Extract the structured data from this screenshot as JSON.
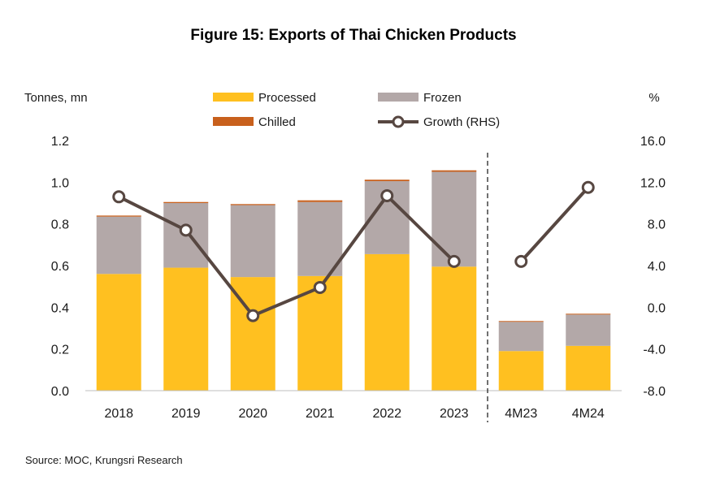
{
  "chart_data": {
    "type": "bar",
    "title": "Figure 15: Exports of Thai Chicken Products",
    "left_unit": "Tonnes, mn",
    "right_unit": "%",
    "source": "Source: MOC, Krungsri Research",
    "categories": [
      "2018",
      "2019",
      "2020",
      "2021",
      "2022",
      "2023",
      "4M23",
      "4M24"
    ],
    "series": [
      {
        "name": "Processed",
        "kind": "stacked-bar",
        "color": "#FFC020",
        "values": [
          0.56,
          0.59,
          0.545,
          0.55,
          0.655,
          0.595,
          0.19,
          0.215
        ]
      },
      {
        "name": "Frozen",
        "kind": "stacked-bar",
        "color": "#B3A8A8",
        "values": [
          0.275,
          0.31,
          0.345,
          0.355,
          0.35,
          0.455,
          0.14,
          0.15
        ]
      },
      {
        "name": "Chilled",
        "kind": "stacked-bar",
        "color": "#C8601C",
        "values": [
          0.005,
          0.005,
          0.005,
          0.008,
          0.007,
          0.007,
          0.004,
          0.004
        ]
      },
      {
        "name": "Growth (RHS)",
        "kind": "line",
        "axis": "right",
        "color": "#574741",
        "values": [
          10.6,
          7.4,
          -0.8,
          1.9,
          10.7,
          4.4,
          4.4,
          11.5
        ]
      }
    ],
    "y_left": {
      "min": 0,
      "max": 1.2,
      "ticks": [
        "0.0",
        "0.2",
        "0.4",
        "0.6",
        "0.8",
        "1.0",
        "1.2"
      ]
    },
    "y_right": {
      "min": -8,
      "max": 16,
      "ticks": [
        "-8.0",
        "-4.0",
        "0.0",
        "4.0",
        "8.0",
        "12.0",
        "16.0"
      ]
    },
    "divider_after": "2023",
    "legend": [
      {
        "label": "Processed",
        "kind": "box",
        "color": "#FFC020"
      },
      {
        "label": "Frozen",
        "kind": "box",
        "color": "#B3A8A8"
      },
      {
        "label": "Chilled",
        "kind": "box",
        "color": "#C8601C"
      },
      {
        "label": "Growth (RHS)",
        "kind": "line",
        "color": "#574741"
      }
    ],
    "legend_position": "top",
    "grid": false
  }
}
